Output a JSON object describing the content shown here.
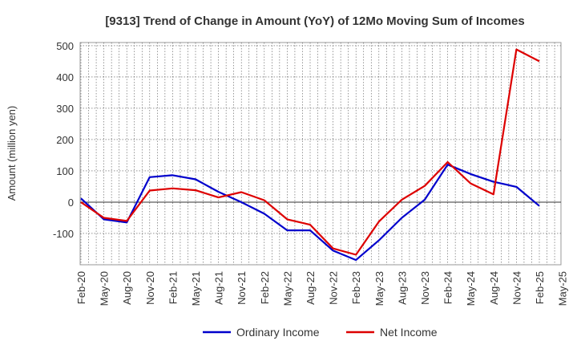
{
  "chart_data": {
    "type": "line",
    "title": "[9313]  Trend of Change in Amount (YoY) of 12Mo Moving Sum of Incomes",
    "xlabel": "",
    "ylabel": "Amount (million yen)",
    "ylim": [
      -200,
      510
    ],
    "yticks": [
      -100,
      0,
      100,
      200,
      300,
      400,
      500
    ],
    "ytick_labels": [
      "-100",
      "0",
      "100",
      "200",
      "300",
      "400",
      "500"
    ],
    "grid": true,
    "legend_position": "bottom-center",
    "x": [
      "Feb-20",
      "May-20",
      "Aug-20",
      "Nov-20",
      "Feb-21",
      "May-21",
      "Aug-21",
      "Nov-21",
      "Feb-22",
      "May-22",
      "Aug-22",
      "Nov-22",
      "Feb-23",
      "May-23",
      "Aug-23",
      "Nov-23",
      "Feb-24",
      "May-24",
      "Aug-24",
      "Nov-24",
      "Feb-25",
      "May-25"
    ],
    "series": [
      {
        "name": "Ordinary Income",
        "color": "#0000cc",
        "values": [
          12,
          -55,
          -65,
          80,
          86,
          73,
          33,
          0,
          -37,
          -90,
          -90,
          -155,
          -185,
          -122,
          -50,
          8,
          120,
          90,
          65,
          49,
          -12,
          null
        ]
      },
      {
        "name": "Net Income",
        "color": "#dd0000",
        "values": [
          0,
          -50,
          -60,
          37,
          44,
          38,
          15,
          32,
          6,
          -55,
          -72,
          -148,
          -168,
          -62,
          8,
          52,
          128,
          60,
          25,
          488,
          450,
          null
        ]
      }
    ]
  }
}
